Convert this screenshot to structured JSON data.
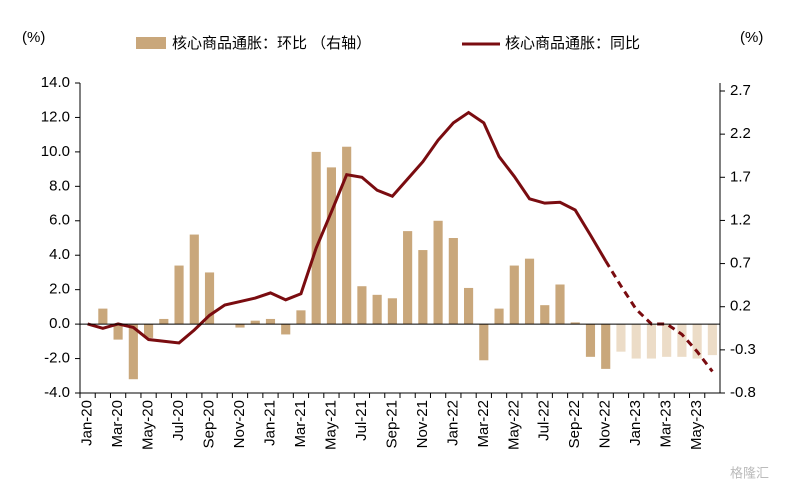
{
  "chart_data": {
    "type": "bar_line",
    "left_unit": "(%)",
    "right_unit": "(%)",
    "watermark": "格隆汇",
    "categories": [
      "Jan-20",
      null,
      "Mar-20",
      null,
      "May-20",
      null,
      "Jul-20",
      null,
      "Sep-20",
      null,
      "Nov-20",
      null,
      "Jan-21",
      null,
      "Mar-21",
      null,
      "May-21",
      null,
      "Jul-21",
      null,
      "Sep-21",
      null,
      "Nov-21",
      null,
      "Jan-22",
      null,
      "Mar-22",
      null,
      "May-22",
      null,
      "Jul-22",
      null,
      "Sep-22",
      null,
      "Nov-22",
      null,
      "Jan-23",
      null,
      "Mar-23",
      null,
      "May-23",
      null
    ],
    "series": [
      {
        "name": "核心商品通胀：环比 （右轴）",
        "type": "bar",
        "color": "#c9a77b",
        "faded_color": "#ecdcc7",
        "faded_from_index": 35,
        "values": [
          0.0,
          0.9,
          -0.9,
          -3.2,
          -0.8,
          0.3,
          3.4,
          5.2,
          3.0,
          0.0,
          -0.2,
          0.2,
          0.3,
          -0.6,
          0.8,
          10.0,
          9.1,
          10.3,
          2.2,
          1.7,
          1.5,
          5.4,
          4.3,
          6.0,
          5.0,
          2.1,
          -2.1,
          0.9,
          3.4,
          3.8,
          1.1,
          2.3,
          0.1,
          -1.9,
          -2.6,
          -1.6,
          -2.0,
          -2.0,
          -1.9,
          -1.9,
          -2.0,
          -1.8
        ]
      },
      {
        "name": "核心商品通胀：同比",
        "type": "line",
        "axis": "y2",
        "color": "#7a0c10",
        "dashed_from_index": 34,
        "values": [
          0.0,
          -0.05,
          0.0,
          -0.04,
          -0.18,
          -0.2,
          -0.22,
          -0.07,
          0.1,
          0.22,
          0.26,
          0.3,
          0.36,
          0.28,
          0.35,
          0.88,
          1.3,
          1.73,
          1.7,
          1.55,
          1.48,
          1.68,
          1.88,
          2.13,
          2.33,
          2.45,
          2.33,
          1.94,
          1.71,
          1.45,
          1.4,
          1.41,
          1.32,
          1.03,
          0.73,
          0.44,
          0.17,
          0.0,
          0.0,
          -0.12,
          -0.32,
          -0.55
        ]
      }
    ],
    "ylim": [
      -4,
      14
    ],
    "yticks": [
      {
        "value": -4,
        "label": "-4.0"
      },
      {
        "value": -2,
        "label": "-2.0"
      },
      {
        "value": 0,
        "label": "0.0"
      },
      {
        "value": 2,
        "label": "2.0"
      },
      {
        "value": 4,
        "label": "4.0"
      },
      {
        "value": 6,
        "label": "6.0"
      },
      {
        "value": 8,
        "label": "8.0"
      },
      {
        "value": 10,
        "label": "10.0"
      },
      {
        "value": 12,
        "label": "12.0"
      },
      {
        "value": 14,
        "label": "14.0"
      }
    ],
    "y2lim": [
      -0.8,
      2.7
    ],
    "y2ticks": [
      -0.8,
      -0.3,
      0.2,
      0.7,
      1.2,
      1.7,
      2.2,
      2.7
    ]
  }
}
